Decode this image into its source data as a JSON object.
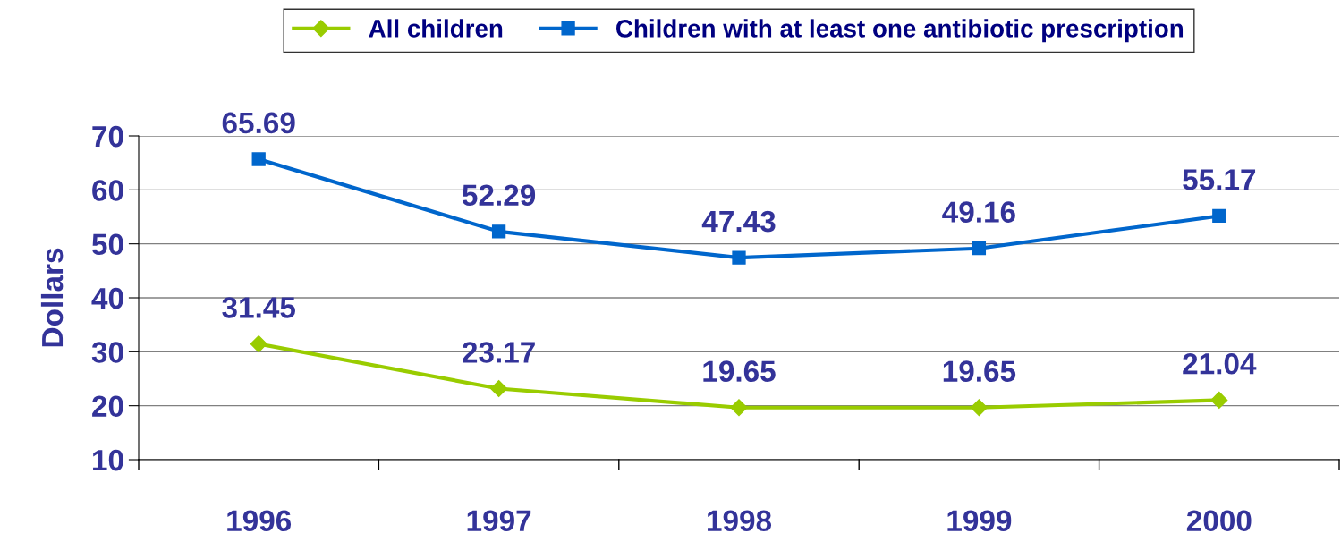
{
  "chart_data": {
    "type": "line",
    "ylabel": "Dollars",
    "categories": [
      "1996",
      "1997",
      "1998",
      "1999",
      "2000"
    ],
    "series": [
      {
        "name": "All children",
        "color": "#99cc00",
        "marker": "diamond",
        "values": [
          31.45,
          23.17,
          19.65,
          19.65,
          21.04
        ]
      },
      {
        "name": "Children with at least one antibiotic prescription",
        "color": "#0066cc",
        "marker": "square",
        "values": [
          65.69,
          52.29,
          47.43,
          49.16,
          55.17
        ]
      }
    ],
    "ylim": [
      10,
      70
    ],
    "yticks": [
      10,
      20,
      30,
      40,
      50,
      60,
      70
    ],
    "grid": "y",
    "legend": "top",
    "data_labels": true,
    "line_style": "solid"
  }
}
